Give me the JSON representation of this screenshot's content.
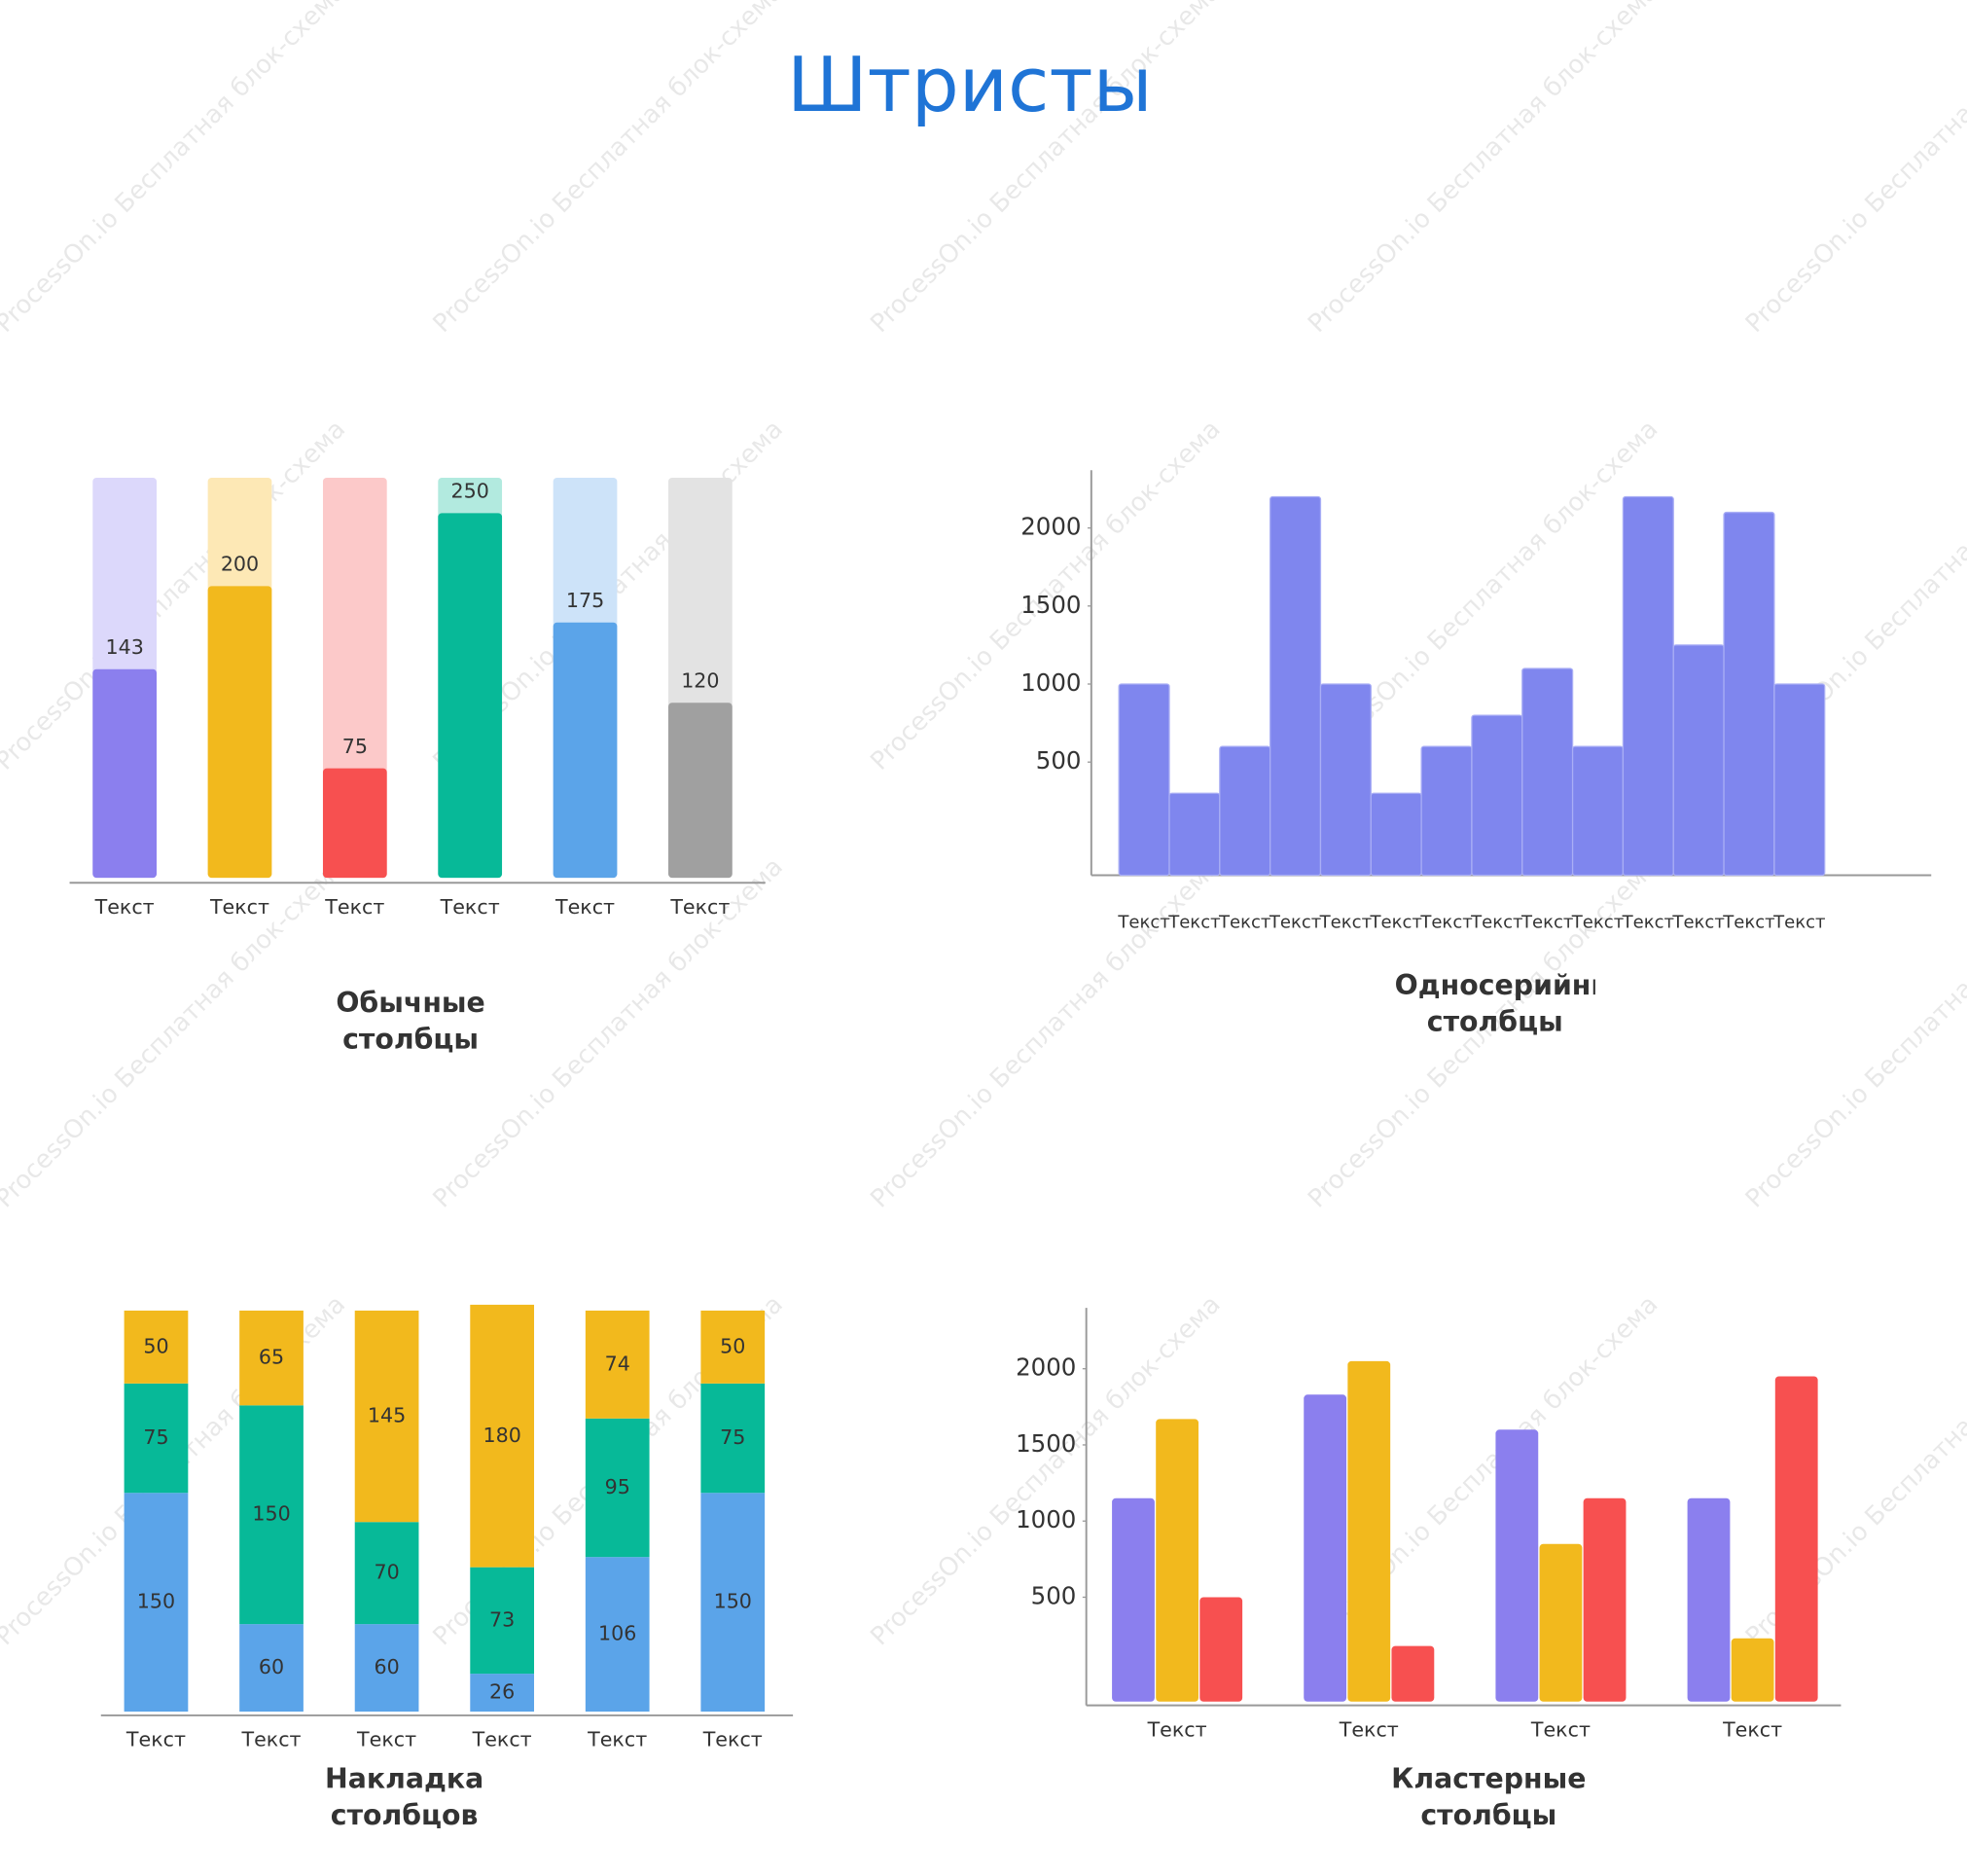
{
  "title": "Штристы",
  "watermark": "ProcessOn.io Бесплатная блок-схема",
  "chart_data": [
    {
      "type": "bar",
      "title": "Обычные столбцы",
      "categories": [
        "Текст",
        "Текст",
        "Текст",
        "Текст",
        "Текст",
        "Текст"
      ],
      "values": [
        143,
        200,
        75,
        250,
        175,
        120
      ],
      "colors": [
        "#8b7fee",
        "#f2b91d",
        "#f75050",
        "#07b998",
        "#5ba4e9",
        "#a0a0a0"
      ],
      "track_colors": [
        "#dcd8fb",
        "#fde8b5",
        "#fcc9c9",
        "#b2eadf",
        "#cde3f9",
        "#e3e3e3"
      ]
    },
    {
      "type": "bar",
      "title": "Односерийные столбцы",
      "categories": [
        "Текст",
        "Текст",
        "Текст",
        "Текст",
        "Текст",
        "Текст",
        "Текст",
        "Текст",
        "Текст",
        "Текст",
        "Текст",
        "Текст",
        "Текст",
        "Текст"
      ],
      "values": [
        1000,
        300,
        600,
        2200,
        1000,
        300,
        600,
        800,
        1100,
        600,
        2200,
        1250,
        2100,
        1000
      ],
      "color": "#7f86ee",
      "ylim": [
        -225,
        2370
      ],
      "yticks": [
        500,
        1000,
        1500,
        2000
      ]
    },
    {
      "type": "stacked_bar",
      "title": "Накладка столбцов",
      "categories": [
        "Текст",
        "Текст",
        "Текст",
        "Текст",
        "Текст",
        "Текст"
      ],
      "series": [
        {
          "color": "#5ba4e9",
          "values": [
            150,
            60,
            60,
            26,
            106,
            150
          ]
        },
        {
          "color": "#07b998",
          "values": [
            75,
            150,
            70,
            73,
            95,
            75
          ]
        },
        {
          "color": "#f2b91d",
          "values": [
            50,
            65,
            145,
            180,
            74,
            50
          ]
        }
      ]
    },
    {
      "type": "grouped_bar",
      "title": "Кластерные столбцы",
      "categories": [
        "Текст",
        "Текст",
        "Текст",
        "Текст"
      ],
      "series": [
        {
          "color": "#8b7fee",
          "values": [
            1150,
            1830,
            1600,
            1150
          ]
        },
        {
          "color": "#f2b91d",
          "values": [
            1670,
            2050,
            850,
            230
          ]
        },
        {
          "color": "#f75050",
          "values": [
            500,
            180,
            1150,
            1950
          ]
        }
      ],
      "ylim": [
        -210,
        2400
      ],
      "yticks": [
        500,
        1000,
        1500,
        2000
      ]
    }
  ]
}
